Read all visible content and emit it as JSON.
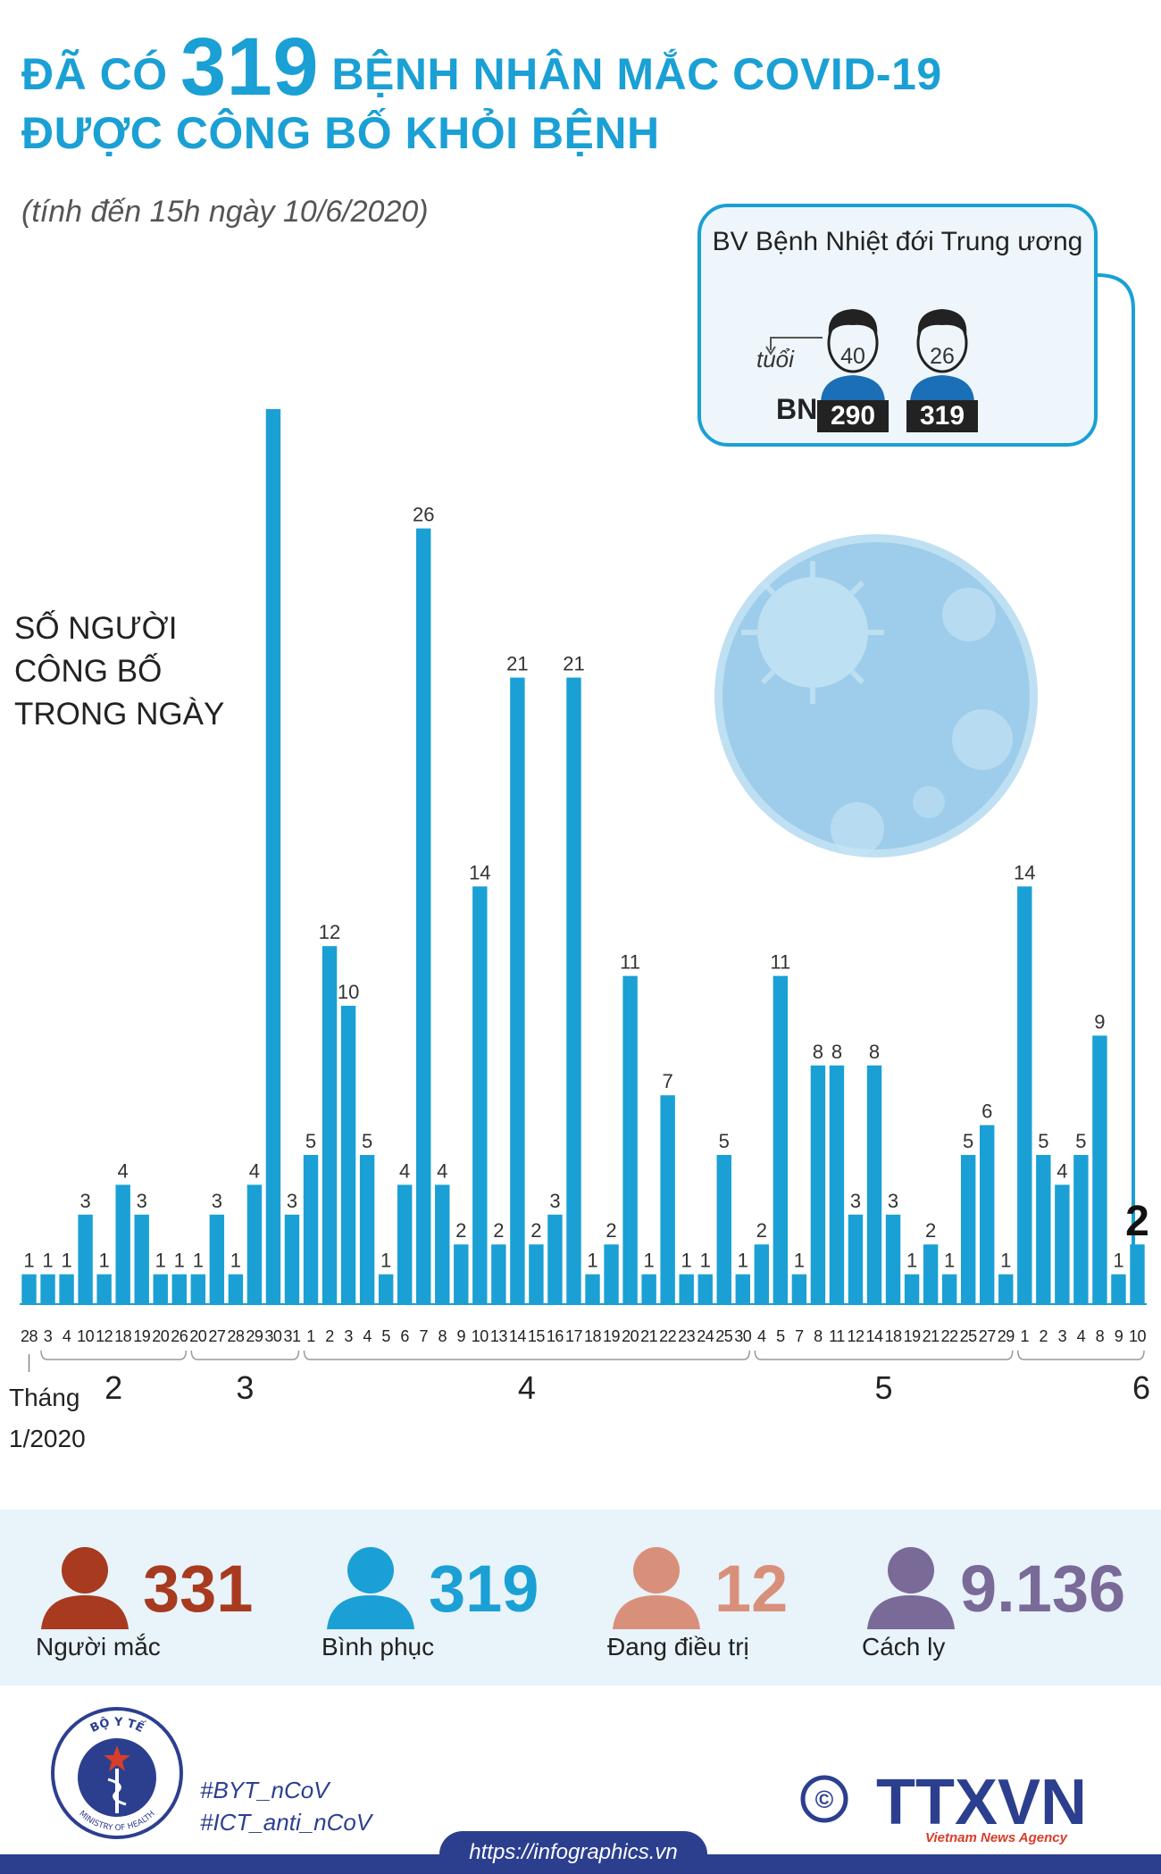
{
  "header": {
    "title_prefix": "ĐÃ CÓ",
    "title_number": "319",
    "title_suffix": "BỆNH NHÂN MẮC COVID-19",
    "title_line2": "ĐƯỢC CÔNG BỐ KHỎI BỆNH",
    "subtitle": "(tính đến 15h ngày 10/6/2020)"
  },
  "chart_label": [
    "SỐ NGƯỜI",
    "CÔNG BỐ",
    "TRONG NGÀY"
  ],
  "callout": {
    "title": "BV Bệnh Nhiệt đới Trung ương",
    "age_label": "tuổi",
    "bn_label": "BN",
    "patients": [
      {
        "age": "40",
        "bn": "290"
      },
      {
        "age": "26",
        "bn": "319"
      }
    ]
  },
  "chart_data": {
    "type": "bar",
    "days": [
      "28",
      "3",
      "4",
      "10",
      "12",
      "18",
      "19",
      "20",
      "26",
      "20",
      "27",
      "28",
      "29",
      "30",
      "31",
      "1",
      "2",
      "3",
      "4",
      "5",
      "6",
      "7",
      "8",
      "9",
      "10",
      "13",
      "14",
      "15",
      "16",
      "17",
      "18",
      "19",
      "20",
      "21",
      "22",
      "23",
      "24",
      "25",
      "30",
      "4",
      "5",
      "7",
      "8",
      "11",
      "12",
      "14",
      "18",
      "19",
      "21",
      "22",
      "25",
      "27",
      "29",
      "1",
      "2",
      "3",
      "4",
      "8",
      "9",
      "10"
    ],
    "values": [
      1,
      1,
      1,
      3,
      1,
      4,
      3,
      1,
      1,
      1,
      3,
      1,
      4,
      30,
      3,
      5,
      12,
      10,
      5,
      1,
      4,
      26,
      4,
      2,
      14,
      2,
      21,
      2,
      3,
      21,
      1,
      2,
      11,
      1,
      7,
      1,
      1,
      5,
      1,
      2,
      11,
      1,
      8,
      8,
      3,
      8,
      3,
      1,
      2,
      1,
      5,
      6,
      1,
      14,
      5,
      4,
      5,
      9,
      1,
      2
    ],
    "months": [
      {
        "label": "Tháng",
        "first": 0,
        "last": 0
      },
      {
        "label": "2",
        "first": 1,
        "last": 8
      },
      {
        "label": "3",
        "first": 9,
        "last": 14
      },
      {
        "label": "4",
        "first": 15,
        "last": 38
      },
      {
        "label": "5",
        "first": 39,
        "last": 52
      },
      {
        "label": "6",
        "first": 53,
        "last": 59
      }
    ],
    "month_note": "1/2020",
    "highlight_index": 59
  },
  "stats": [
    {
      "value": "331",
      "label": "Người mắc",
      "color": "#a73a1f"
    },
    {
      "value": "319",
      "label": "Bình phục",
      "color": "#1aa0d4"
    },
    {
      "value": "12",
      "label": "Đang điều trị",
      "color": "#d9907a"
    },
    {
      "value": "9.136",
      "label": "Cách ly",
      "color": "#7a6a98"
    }
  ],
  "footer": {
    "logo_text_top": "BỘ Y TẾ",
    "logo_text_bottom": "MINISTRY OF HEALTH",
    "hashtags": [
      "#BYT_nCoV",
      "#ICT_anti_nCoV"
    ],
    "agency": "TTXVN",
    "agency_sub": "Vietnam News Agency",
    "copyright": "©",
    "url": "https://infographics.vn"
  },
  "colors": {
    "accent": "#1aa0d4",
    "bar": "#1aa0d4",
    "brand_navy": "#2c3f8f"
  }
}
